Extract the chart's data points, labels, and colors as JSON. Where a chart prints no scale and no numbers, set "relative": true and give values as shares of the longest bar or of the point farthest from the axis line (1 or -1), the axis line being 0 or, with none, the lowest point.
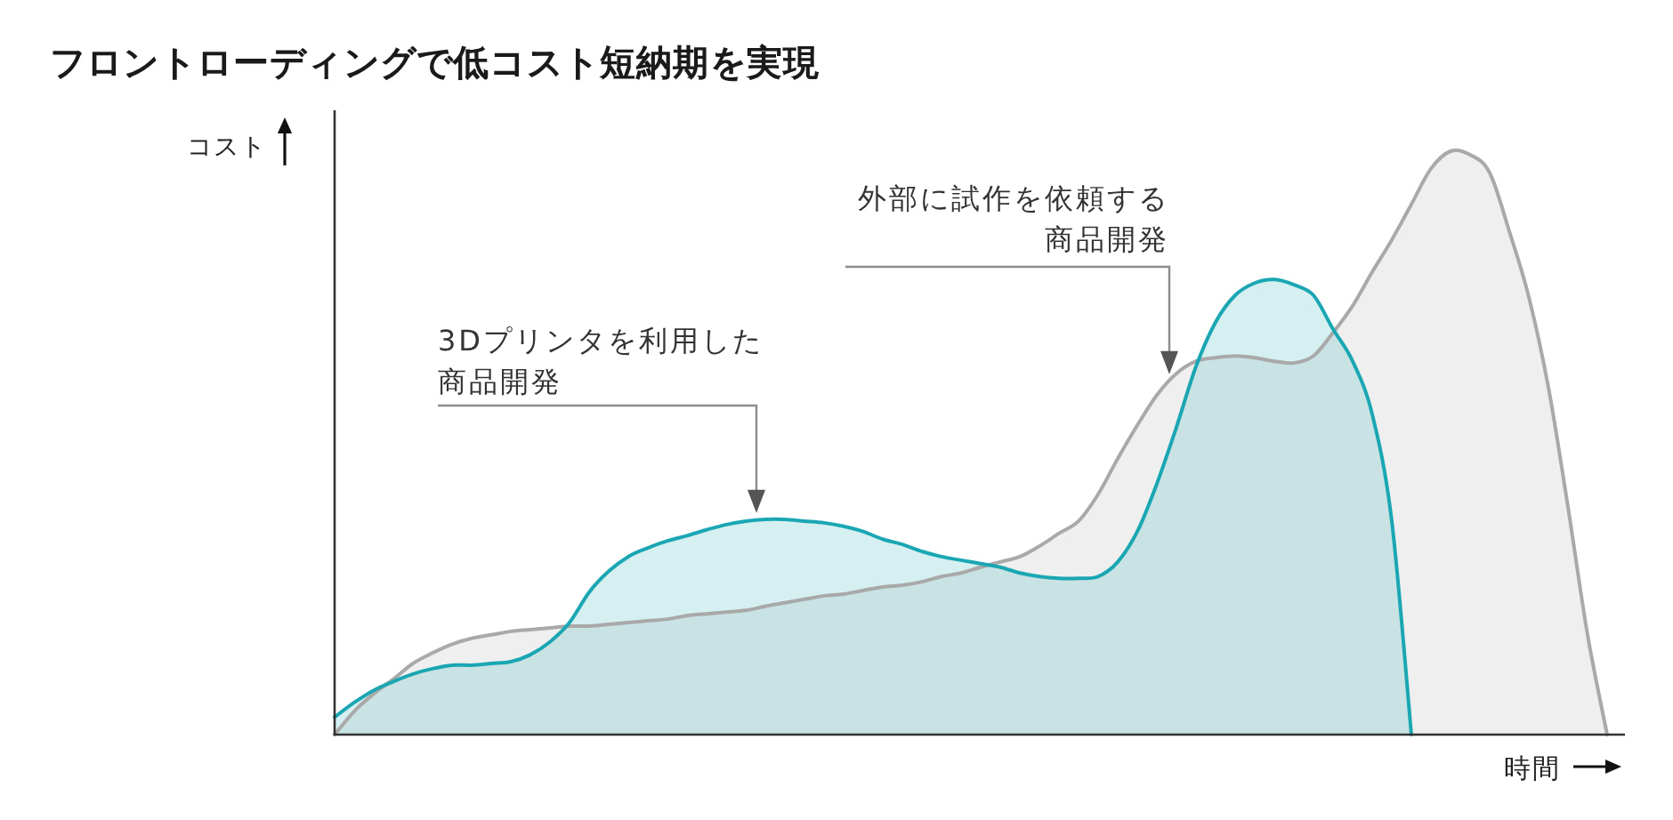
{
  "chart_data": {
    "type": "area",
    "title": "フロントローディングで低コスト短納期を実現",
    "xlabel": "時間",
    "ylabel": "コスト",
    "relative": true,
    "annotations": [
      "外部に試作を依頼する商品開発",
      "3Dプリンタを利用した商品開発"
    ],
    "categories": [
      null,
      null,
      null,
      null,
      null,
      null,
      null,
      null,
      null,
      null,
      null,
      null,
      null,
      null,
      null,
      null,
      null,
      null,
      null,
      null,
      null,
      null,
      null,
      null,
      null,
      null,
      null,
      null,
      null,
      null,
      null,
      null,
      null,
      null,
      null,
      null,
      null,
      null,
      null,
      null,
      null,
      null,
      null,
      null,
      null,
      null,
      null,
      null,
      null,
      null,
      null,
      null,
      null,
      null,
      null,
      null,
      null,
      null,
      null,
      null,
      null,
      null,
      null,
      null,
      null,
      null
    ],
    "series": [
      {
        "color": "#a9a9a9",
        "values": [
          0,
          0.04,
          0.07,
          0.095,
          0.122,
          0.14,
          0.155,
          0.165,
          0.171,
          0.177,
          0.18,
          0.183,
          0.186,
          0.186,
          0.189,
          0.192,
          0.195,
          0.198,
          0.204,
          0.207,
          0.21,
          0.213,
          0.22,
          0.226,
          0.232,
          0.238,
          0.241,
          0.247,
          0.253,
          0.256,
          0.262,
          0.271,
          0.277,
          0.287,
          0.296,
          0.305,
          0.323,
          0.345,
          0.366,
          0.412,
          0.473,
          0.53,
          0.582,
          0.619,
          0.64,
          0.646,
          0.649,
          0.646,
          0.64,
          0.637,
          0.649,
          0.689,
          0.735,
          0.793,
          0.848,
          0.909,
          0.97,
          1,
          0.994,
          0.963,
          0.863,
          0.75,
          0.595,
          0.39,
          0.171,
          0
        ]
      },
      {
        "color": "#1aa7b3",
        "values": [
          0.03,
          0.055,
          0.076,
          0.091,
          0.104,
          0.113,
          0.119,
          0.119,
          0.122,
          0.125,
          0.137,
          0.159,
          0.192,
          0.244,
          0.28,
          0.305,
          0.32,
          0.332,
          0.341,
          0.351,
          0.36,
          0.366,
          0.369,
          0.369,
          0.366,
          0.363,
          0.357,
          0.348,
          0.335,
          0.326,
          0.314,
          0.305,
          0.299,
          0.293,
          0.287,
          0.277,
          0.271,
          0.268,
          0.268,
          0.271,
          0.296,
          0.348,
          0.43,
          0.527,
          0.631,
          0.707,
          0.753,
          0.774,
          0.78,
          0.771,
          0.753,
          0.695,
          0.64,
          0.549,
          0.366,
          0,
          null,
          null,
          null,
          null,
          null,
          null,
          null,
          null,
          null,
          null
        ]
      }
    ]
  }
}
